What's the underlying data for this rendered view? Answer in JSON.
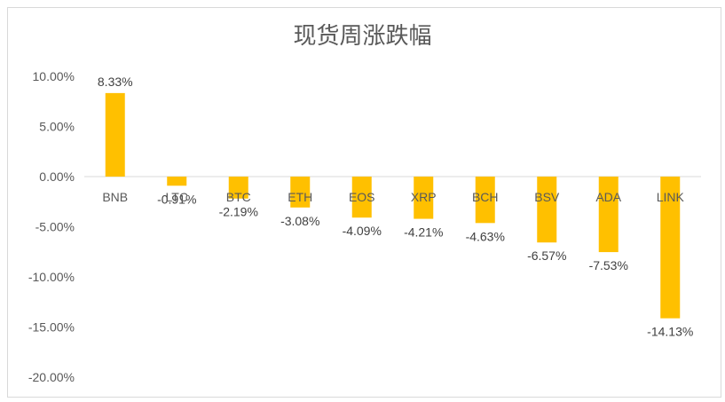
{
  "chart_data": {
    "type": "bar",
    "title": "现货周涨跌幅",
    "categories": [
      "BNB",
      "LTC",
      "BTC",
      "ETH",
      "EOS",
      "XRP",
      "BCH",
      "BSV",
      "ADA",
      "LINK"
    ],
    "values": [
      8.33,
      -0.91,
      -2.19,
      -3.08,
      -4.09,
      -4.21,
      -4.63,
      -6.57,
      -7.53,
      -14.13
    ],
    "data_labels": [
      "8.33%",
      "-0.91%",
      "-2.19%",
      "-3.08%",
      "-4.09%",
      "-4.21%",
      "-4.63%",
      "-6.57%",
      "-7.53%",
      "-14.13%"
    ],
    "ylim": [
      -20,
      10
    ],
    "yticks": [
      10,
      5,
      0,
      -5,
      -10,
      -15,
      -20
    ],
    "ytick_labels": [
      "10.00%",
      "5.00%",
      "0.00%",
      "-5.00%",
      "-10.00%",
      "-15.00%",
      "-20.00%"
    ],
    "bar_color": "#FFC000",
    "axis_color": "#d9d9d9",
    "xlabel": "",
    "ylabel": "",
    "grid": false,
    "legend": "none"
  }
}
